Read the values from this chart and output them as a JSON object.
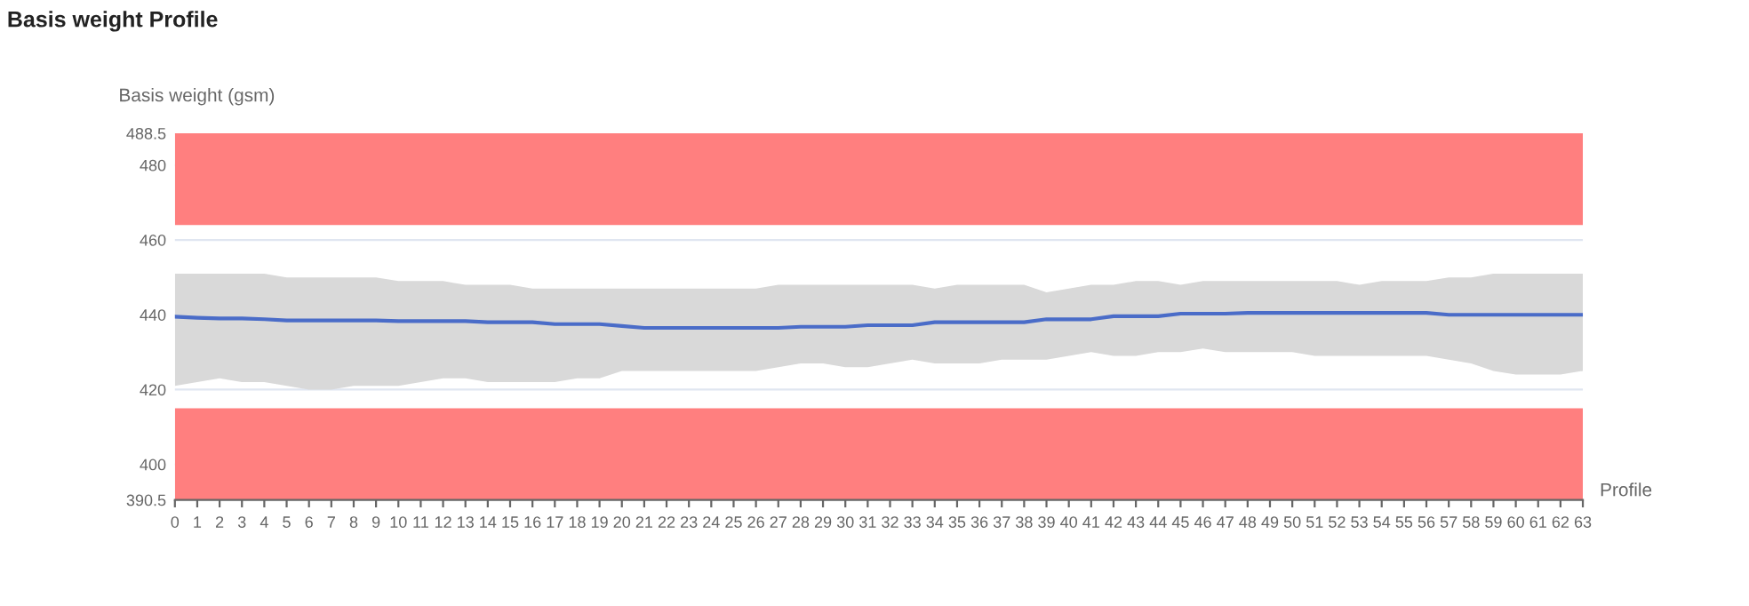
{
  "chart_data": {
    "type": "line",
    "title": "Basis weight Profile",
    "ylabel": "Basis weight (gsm)",
    "xlabel": "Profile",
    "categories": [
      "0",
      "1",
      "2",
      "3",
      "4",
      "5",
      "6",
      "7",
      "8",
      "9",
      "10",
      "11",
      "12",
      "13",
      "14",
      "15",
      "16",
      "17",
      "18",
      "19",
      "20",
      "21",
      "22",
      "23",
      "24",
      "25",
      "26",
      "27",
      "28",
      "29",
      "30",
      "31",
      "32",
      "33",
      "34",
      "35",
      "36",
      "37",
      "38",
      "39",
      "40",
      "41",
      "42",
      "43",
      "44",
      "45",
      "46",
      "47",
      "48",
      "49",
      "50",
      "51",
      "52",
      "53",
      "54",
      "55",
      "56",
      "57",
      "58",
      "59",
      "60",
      "61",
      "62",
      "63"
    ],
    "series": [
      {
        "color": "#4a6cc8",
        "values": [
          439.5,
          439.2,
          439,
          439,
          438.8,
          438.5,
          438.5,
          438.5,
          438.5,
          438.5,
          438.3,
          438.3,
          438.3,
          438.3,
          438,
          438,
          438,
          437.5,
          437.5,
          437.5,
          437,
          436.5,
          436.5,
          436.5,
          436.5,
          436.5,
          436.5,
          436.5,
          436.8,
          436.8,
          436.8,
          437.2,
          437.2,
          437.2,
          438,
          438,
          438,
          438,
          438,
          438.8,
          438.8,
          438.8,
          439.6,
          439.6,
          439.6,
          440.3,
          440.3,
          440.3,
          440.5,
          440.5,
          440.5,
          440.5,
          440.5,
          440.5,
          440.5,
          440.5,
          440.5,
          440,
          440,
          440,
          440,
          440,
          440,
          440
        ],
        "upper": [
          451,
          451,
          451,
          451,
          451,
          450,
          450,
          450,
          450,
          450,
          449,
          449,
          449,
          448,
          448,
          448,
          447,
          447,
          447,
          447,
          447,
          447,
          447,
          447,
          447,
          447,
          447,
          448,
          448,
          448,
          448,
          448,
          448,
          448,
          447,
          448,
          448,
          448,
          448,
          446,
          447,
          448,
          448,
          449,
          449,
          448,
          449,
          449,
          449,
          449,
          449,
          449,
          449,
          448,
          449,
          449,
          449,
          450,
          450,
          451,
          451,
          451,
          451,
          451
        ],
        "lower": [
          421,
          422,
          423,
          422,
          422,
          421,
          420,
          420,
          421,
          421,
          421,
          422,
          423,
          423,
          422,
          422,
          422,
          422,
          423,
          423,
          425,
          425,
          425,
          425,
          425,
          425,
          425,
          426,
          427,
          427,
          426,
          426,
          427,
          428,
          427,
          427,
          427,
          428,
          428,
          428,
          429,
          430,
          429,
          429,
          430,
          430,
          431,
          430,
          430,
          430,
          430,
          429,
          429,
          429,
          429,
          429,
          429,
          428,
          427,
          425,
          424,
          424,
          424,
          425
        ]
      }
    ],
    "bands": [
      {
        "axis": "y",
        "from": 464,
        "to": 488.5,
        "color": "#ff7f7f"
      },
      {
        "axis": "y",
        "from": 390.5,
        "to": 415,
        "color": "#ff7f7f"
      }
    ],
    "ylim": [
      390.5,
      488.5
    ],
    "yticks": [
      390.5,
      400,
      420,
      440,
      460,
      480,
      488.5
    ],
    "grid": "y",
    "marker": "none",
    "line_style": "solid"
  }
}
